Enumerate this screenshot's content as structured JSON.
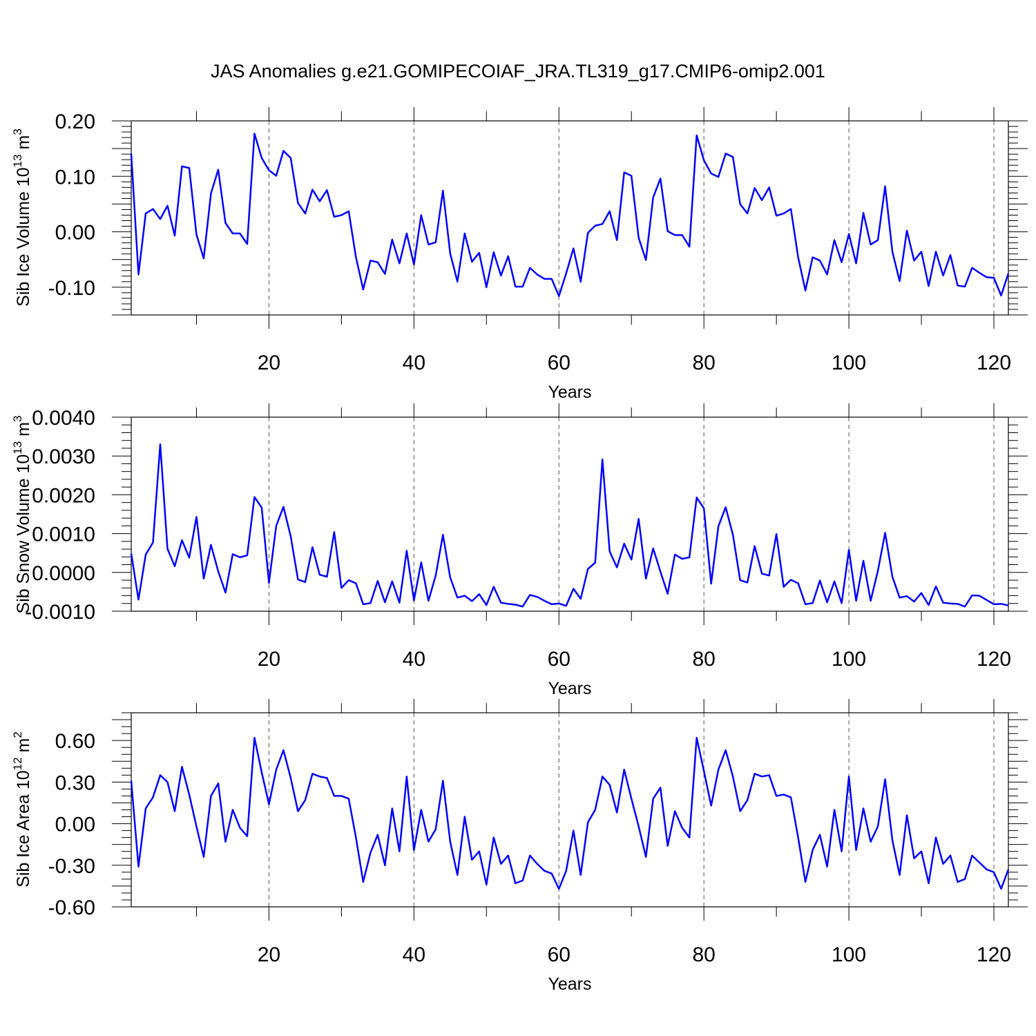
{
  "chart_data": {
    "type": "line",
    "title": "JAS Anomalies g.e21.GOMIPECOIAF_JRA.TL319_g17.CMIP6-omip2.001",
    "panels": [
      {
        "id": "volume",
        "type": "line",
        "ylabel": "Sib Ice Volume 10",
        "ylabel_sup": "13",
        "ylabel_unit": " m",
        "ylabel_unit_sup": "3",
        "xlabel": "Years",
        "xlim": [
          1,
          122
        ],
        "ylim": [
          -0.15,
          0.2
        ],
        "xticks": [
          20,
          40,
          60,
          80,
          100,
          120
        ],
        "xtick_labels": [
          "20",
          "40",
          "60",
          "80",
          "100",
          "120"
        ],
        "yticks": [
          -0.1,
          0.0,
          0.1,
          0.2
        ],
        "ytick_labels": [
          "-0.10",
          "0.00",
          "0.10",
          "0.20"
        ],
        "ymajor_step": 0.05,
        "yminor_step": 0.01,
        "grid": "vertical dashed at x major ticks",
        "series": [
          {
            "name": "Sib Ice Volume",
            "color": "#0000ff",
            "x_start": 1,
            "values": [
              0.141,
              -0.077,
              0.033,
              0.041,
              0.023,
              0.047,
              -0.007,
              0.118,
              0.115,
              -0.005,
              -0.048,
              0.069,
              0.112,
              0.016,
              -0.003,
              -0.003,
              -0.022,
              0.177,
              0.133,
              0.111,
              0.101,
              0.146,
              0.133,
              0.052,
              0.033,
              0.076,
              0.055,
              0.075,
              0.027,
              0.03,
              0.037,
              -0.046,
              -0.104,
              -0.052,
              -0.055,
              -0.076,
              -0.014,
              -0.057,
              -0.003,
              -0.059,
              0.03,
              -0.023,
              -0.019,
              0.074,
              -0.039,
              -0.09,
              -0.003,
              -0.054,
              -0.038,
              -0.1,
              -0.037,
              -0.079,
              -0.044,
              -0.099,
              -0.099,
              -0.065,
              -0.077,
              -0.085,
              -0.085,
              -0.116,
              -0.075,
              -0.03,
              -0.09,
              -0.002,
              0.011,
              0.014,
              0.037,
              -0.015,
              0.107,
              0.101,
              -0.011,
              -0.051,
              0.062,
              0.096,
              0.001,
              -0.006,
              -0.006,
              -0.027,
              0.174,
              0.129,
              0.105,
              0.099,
              0.141,
              0.135,
              0.05,
              0.033,
              0.079,
              0.057,
              0.08,
              0.029,
              0.033,
              0.041,
              -0.046,
              -0.106,
              -0.046,
              -0.052,
              -0.077,
              -0.015,
              -0.055,
              -0.004,
              -0.057,
              0.034,
              -0.023,
              -0.015,
              0.082,
              -0.036,
              -0.089,
              0.002,
              -0.052,
              -0.036,
              -0.098,
              -0.036,
              -0.079,
              -0.042,
              -0.097,
              -0.099,
              -0.065,
              -0.074,
              -0.082,
              -0.083,
              -0.115,
              -0.075
            ]
          }
        ]
      },
      {
        "id": "snow",
        "type": "line",
        "ylabel": "Sib Snow Volume 10",
        "ylabel_sup": "13",
        "ylabel_unit": " m",
        "ylabel_unit_sup": "3",
        "xlabel": "Years",
        "xlim": [
          1,
          122
        ],
        "ylim": [
          -0.001,
          0.004
        ],
        "xticks": [
          20,
          40,
          60,
          80,
          100,
          120
        ],
        "xtick_labels": [
          "20",
          "40",
          "60",
          "80",
          "100",
          "120"
        ],
        "yticks": [
          -0.001,
          0.0,
          0.001,
          0.002,
          0.003,
          0.004
        ],
        "ytick_labels": [
          "-0.0010",
          "0.0000",
          "0.0010",
          "0.0020",
          "0.0030",
          "0.0040"
        ],
        "ymajor_step": 0.0005,
        "yminor_step": 0.0002,
        "grid": "vertical dashed at x major ticks",
        "series": [
          {
            "name": "Sib Snow Volume",
            "color": "#0000ff",
            "x_start": 1,
            "values": [
              0.00049,
              -0.0007,
              0.00046,
              0.00077,
              0.0033,
              0.00061,
              0.00016,
              0.00083,
              0.00038,
              0.00143,
              -0.00016,
              0.00071,
              3e-05,
              -0.00052,
              0.00047,
              0.00039,
              0.00044,
              0.00194,
              0.00167,
              -0.00027,
              0.0012,
              0.00169,
              0.00093,
              -0.00018,
              -0.00025,
              0.00065,
              -6e-05,
              -0.00011,
              0.00104,
              -0.0004,
              -0.0002,
              -0.00028,
              -0.00082,
              -0.00079,
              -0.00022,
              -0.00077,
              -0.00023,
              -0.00078,
              0.00056,
              -0.00072,
              0.00026,
              -0.00073,
              -8e-05,
              0.00097,
              -0.00013,
              -0.00065,
              -0.0006,
              -0.00074,
              -0.00056,
              -0.00084,
              -0.00037,
              -0.00078,
              -0.00081,
              -0.00083,
              -0.00088,
              -0.00058,
              -0.00063,
              -0.00073,
              -0.00082,
              -0.0008,
              -0.00086,
              -0.00042,
              -0.00068,
              9e-05,
              0.00025,
              0.00291,
              0.00054,
              0.00013,
              0.00074,
              0.00033,
              0.00138,
              -0.00016,
              0.00062,
              2e-05,
              -0.00055,
              0.00046,
              0.00035,
              0.00039,
              0.00193,
              0.00165,
              -0.00029,
              0.00119,
              0.00168,
              0.00097,
              -0.0002,
              -0.00026,
              0.00068,
              -3e-05,
              -8e-05,
              0.00099,
              -0.00037,
              -0.00019,
              -0.00028,
              -0.00082,
              -0.00079,
              -0.00021,
              -0.00077,
              -0.00023,
              -0.00079,
              0.00058,
              -0.00073,
              0.0003,
              -0.00073,
              4e-05,
              0.00102,
              -0.00011,
              -0.00065,
              -0.00061,
              -0.00075,
              -0.00053,
              -0.00084,
              -0.00036,
              -0.00078,
              -0.0008,
              -0.00081,
              -0.00088,
              -0.00059,
              -0.0006,
              -0.00071,
              -0.00082,
              -0.00081,
              -0.00085
            ]
          }
        ]
      },
      {
        "id": "area",
        "type": "line",
        "ylabel": "Sib Ice Area 10",
        "ylabel_sup": "12",
        "ylabel_unit": " m",
        "ylabel_unit_sup": "2",
        "xlabel": "Years",
        "xlim": [
          1,
          122
        ],
        "ylim": [
          -0.6,
          0.8
        ],
        "xticks": [
          20,
          40,
          60,
          80,
          100,
          120
        ],
        "xtick_labels": [
          "20",
          "40",
          "60",
          "80",
          "100",
          "120"
        ],
        "yticks": [
          -0.6,
          -0.3,
          0.0,
          0.3,
          0.6
        ],
        "ytick_labels": [
          "-0.60",
          "-0.30",
          "0.00",
          "0.30",
          "0.60"
        ],
        "ymajor_step": 0.15,
        "yminor_step": 0.05,
        "grid": "vertical dashed at x major ticks",
        "series": [
          {
            "name": "Sib Ice Area",
            "color": "#0000ff",
            "x_start": 1,
            "values": [
              0.31,
              -0.31,
              0.11,
              0.19,
              0.35,
              0.3,
              0.09,
              0.41,
              0.21,
              -0.02,
              -0.24,
              0.2,
              0.29,
              -0.13,
              0.1,
              -0.03,
              -0.09,
              0.62,
              0.37,
              0.14,
              0.39,
              0.53,
              0.33,
              0.09,
              0.17,
              0.36,
              0.34,
              0.33,
              0.2,
              0.2,
              0.18,
              -0.1,
              -0.42,
              -0.21,
              -0.08,
              -0.3,
              0.11,
              -0.2,
              0.34,
              -0.19,
              0.1,
              -0.13,
              -0.04,
              0.31,
              -0.13,
              -0.37,
              0.05,
              -0.26,
              -0.2,
              -0.44,
              -0.1,
              -0.29,
              -0.23,
              -0.43,
              -0.41,
              -0.23,
              -0.29,
              -0.34,
              -0.36,
              -0.47,
              -0.34,
              -0.05,
              -0.37,
              0.01,
              0.1,
              0.34,
              0.28,
              0.08,
              0.39,
              0.18,
              -0.02,
              -0.24,
              0.18,
              0.26,
              -0.16,
              0.09,
              -0.03,
              -0.1,
              0.62,
              0.38,
              0.13,
              0.39,
              0.53,
              0.34,
              0.09,
              0.17,
              0.36,
              0.34,
              0.35,
              0.2,
              0.21,
              0.19,
              -0.1,
              -0.42,
              -0.19,
              -0.08,
              -0.31,
              0.1,
              -0.2,
              0.34,
              -0.19,
              0.11,
              -0.13,
              -0.02,
              0.32,
              -0.12,
              -0.37,
              0.06,
              -0.25,
              -0.2,
              -0.43,
              -0.1,
              -0.29,
              -0.23,
              -0.42,
              -0.4,
              -0.23,
              -0.28,
              -0.33,
              -0.35,
              -0.47,
              -0.33
            ]
          }
        ]
      }
    ]
  }
}
